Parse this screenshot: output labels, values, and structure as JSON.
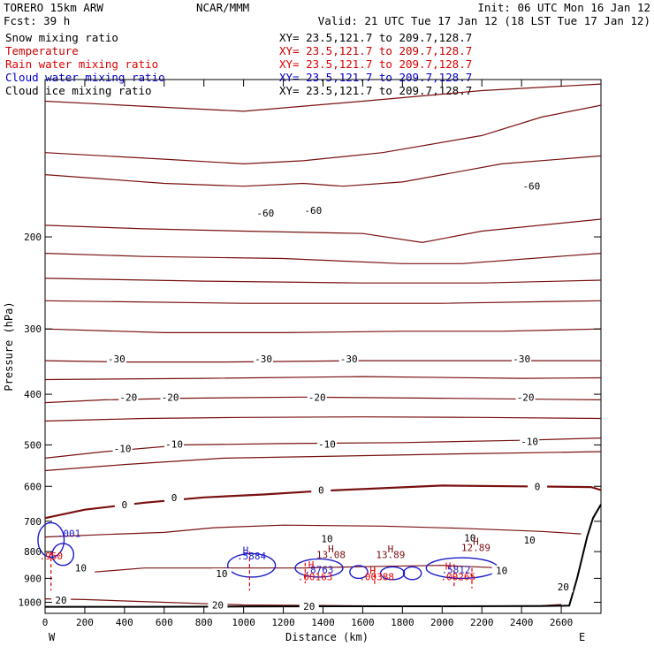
{
  "header": {
    "model": "TORERO  15km ARW",
    "center": "NCAR/MMM",
    "init": "Init: 06 UTC Mon 16 Jan 12",
    "fcst": "Fcst:   39 h",
    "valid": "Valid: 21 UTC Tue 17 Jan 12 (18 LST Tue 17 Jan 12)"
  },
  "fields": [
    {
      "name": "Snow mixing ratio",
      "xy": "XY=  23.5,121.7 to 209.7,128.7",
      "color": "#000000"
    },
    {
      "name": "Temperature",
      "xy": "XY=  23.5,121.7 to 209.7,128.7",
      "color": "#c80000"
    },
    {
      "name": "Rain water mixing ratio",
      "xy": "XY=  23.5,121.7 to 209.7,128.7",
      "color": "#e00000"
    },
    {
      "name": "Cloud water mixing ratio",
      "xy": "XY=  23.5,121.7 to 209.7,128.7",
      "color": "#0000cc"
    },
    {
      "name": "Cloud ice mixing ratio",
      "xy": "XY=  23.5,121.7 to 209.7,128.7",
      "color": "#000000"
    }
  ],
  "colors": {
    "temperature": "#7a1010",
    "rain": "#e00000",
    "cloud_water": "#1a1acc",
    "terrain": "#000000"
  },
  "chart_data": {
    "type": "line",
    "xlabel": "Distance (km)",
    "ylabel": "Pressure (hPa)",
    "x_ticks": [
      0,
      200,
      400,
      600,
      800,
      1000,
      1200,
      1400,
      1600,
      1800,
      2000,
      2200,
      2400,
      2600
    ],
    "y_ticks": [
      200,
      300,
      400,
      500,
      600,
      700,
      800,
      900,
      1000
    ],
    "xlim": [
      0,
      2800
    ],
    "ylim_top": 100,
    "ylim_bottom": 1050,
    "y_scale": "log",
    "left_end": "W",
    "right_end": "E",
    "temperature_contours": [
      {
        "label": "-60",
        "points": [
          [
            0,
            110
          ],
          [
            400,
            112
          ],
          [
            1000,
            115
          ],
          [
            1600,
            110
          ],
          [
            2200,
            105
          ],
          [
            2800,
            102
          ]
        ]
      },
      {
        "label": "-60",
        "points": [
          [
            0,
            138
          ],
          [
            600,
            142
          ],
          [
            1000,
            145
          ],
          [
            1300,
            143
          ],
          [
            1700,
            138
          ],
          [
            2200,
            128
          ],
          [
            2500,
            118
          ],
          [
            2800,
            112
          ]
        ]
      },
      {
        "label": "-60",
        "points": [
          [
            0,
            152
          ],
          [
            600,
            158
          ],
          [
            1000,
            160
          ],
          [
            1300,
            158
          ],
          [
            1500,
            160
          ],
          [
            1800,
            157
          ],
          [
            2300,
            145
          ],
          [
            2800,
            140
          ]
        ]
      },
      {
        "label": "",
        "points": [
          [
            0,
            190
          ],
          [
            500,
            193
          ],
          [
            1000,
            195
          ],
          [
            1600,
            197
          ],
          [
            1900,
            205
          ],
          [
            2200,
            195
          ],
          [
            2800,
            185
          ]
        ]
      },
      {
        "label": "",
        "points": [
          [
            0,
            215
          ],
          [
            500,
            218
          ],
          [
            1200,
            220
          ],
          [
            1800,
            225
          ],
          [
            2100,
            225
          ],
          [
            2800,
            215
          ]
        ]
      },
      {
        "label": "",
        "points": [
          [
            0,
            240
          ],
          [
            800,
            243
          ],
          [
            1600,
            245
          ],
          [
            2200,
            245
          ],
          [
            2800,
            242
          ]
        ]
      },
      {
        "label": "",
        "points": [
          [
            0,
            265
          ],
          [
            1000,
            268
          ],
          [
            2000,
            268
          ],
          [
            2800,
            265
          ]
        ]
      },
      {
        "label": "-30",
        "points": [
          [
            0,
            300
          ],
          [
            600,
            305
          ],
          [
            1200,
            305
          ],
          [
            1800,
            303
          ],
          [
            2300,
            303
          ],
          [
            2800,
            300
          ]
        ]
      },
      {
        "label": "-30",
        "points": [
          [
            0,
            345
          ],
          [
            400,
            347
          ],
          [
            900,
            347
          ],
          [
            1600,
            345
          ],
          [
            2400,
            345
          ],
          [
            2800,
            345
          ]
        ]
      },
      {
        "label": "",
        "points": [
          [
            0,
            375
          ],
          [
            800,
            373
          ],
          [
            1600,
            370
          ],
          [
            2400,
            373
          ],
          [
            2800,
            372
          ]
        ]
      },
      {
        "label": "-20",
        "points": [
          [
            0,
            415
          ],
          [
            300,
            410
          ],
          [
            700,
            407
          ],
          [
            1300,
            405
          ],
          [
            2000,
            407
          ],
          [
            2800,
            410
          ]
        ]
      },
      {
        "label": "",
        "points": [
          [
            0,
            450
          ],
          [
            500,
            445
          ],
          [
            1000,
            443
          ],
          [
            1600,
            442
          ],
          [
            2200,
            443
          ],
          [
            2800,
            445
          ]
        ]
      },
      {
        "label": "-10",
        "points": [
          [
            0,
            530
          ],
          [
            300,
            515
          ],
          [
            700,
            500
          ],
          [
            1200,
            497
          ],
          [
            1800,
            495
          ],
          [
            2400,
            490
          ],
          [
            2800,
            485
          ]
        ]
      },
      {
        "label": "",
        "points": [
          [
            0,
            560
          ],
          [
            400,
            545
          ],
          [
            900,
            530
          ],
          [
            1500,
            525
          ],
          [
            2100,
            520
          ],
          [
            2800,
            515
          ]
        ]
      },
      {
        "label": "0",
        "points": [
          [
            0,
            690
          ],
          [
            200,
            665
          ],
          [
            500,
            645
          ],
          [
            800,
            630
          ],
          [
            1100,
            622
          ],
          [
            1400,
            612
          ],
          [
            1700,
            605
          ],
          [
            2000,
            598
          ],
          [
            2400,
            600
          ],
          [
            2750,
            602
          ],
          [
            2800,
            610
          ]
        ]
      },
      {
        "label": "10",
        "points": [
          [
            0,
            750
          ],
          [
            300,
            742
          ],
          [
            600,
            735
          ],
          [
            850,
            720
          ],
          [
            1200,
            712
          ],
          [
            1700,
            715
          ],
          [
            2100,
            722
          ],
          [
            2500,
            732
          ],
          [
            2700,
            740
          ]
        ]
      },
      {
        "label": "10",
        "points": [
          [
            250,
            875
          ],
          [
            500,
            860
          ],
          [
            900,
            860
          ],
          [
            1300,
            860
          ],
          [
            1600,
            855
          ],
          [
            2000,
            850
          ],
          [
            2300,
            860
          ]
        ]
      },
      {
        "label": "20",
        "points": [
          [
            0,
            985
          ],
          [
            200,
            988
          ],
          [
            600,
            1000
          ],
          [
            1000,
            1012
          ],
          [
            1500,
            1015
          ],
          [
            2000,
            1018
          ],
          [
            2500,
            1015
          ],
          [
            2600,
            1010
          ]
        ]
      }
    ],
    "temperature_labels": [
      {
        "text": "-60",
        "x": 1110,
        "p": 180
      },
      {
        "text": "-60",
        "x": 1350,
        "p": 178
      },
      {
        "text": "-60",
        "x": 2450,
        "p": 160
      },
      {
        "text": "-30",
        "x": 360,
        "p": 342
      },
      {
        "text": "-30",
        "x": 1100,
        "p": 342
      },
      {
        "text": "-30",
        "x": 1530,
        "p": 342
      },
      {
        "text": "-30",
        "x": 2400,
        "p": 342
      },
      {
        "text": "-20",
        "x": 420,
        "p": 405
      },
      {
        "text": "-20",
        "x": 630,
        "p": 405
      },
      {
        "text": "-20",
        "x": 1370,
        "p": 405
      },
      {
        "text": "-20",
        "x": 2420,
        "p": 405
      },
      {
        "text": "-10",
        "x": 390,
        "p": 508
      },
      {
        "text": "-10",
        "x": 650,
        "p": 498
      },
      {
        "text": "-10",
        "x": 1420,
        "p": 498
      },
      {
        "text": "-10",
        "x": 2440,
        "p": 492
      },
      {
        "text": "0",
        "x": 400,
        "p": 650
      },
      {
        "text": "0",
        "x": 650,
        "p": 630
      },
      {
        "text": "0",
        "x": 1390,
        "p": 610
      },
      {
        "text": "0",
        "x": 2480,
        "p": 600
      },
      {
        "text": "10",
        "x": 1420,
        "p": 755
      },
      {
        "text": "10",
        "x": 2140,
        "p": 752
      },
      {
        "text": "10",
        "x": 2440,
        "p": 760
      },
      {
        "text": "10",
        "x": 180,
        "p": 860
      },
      {
        "text": "10",
        "x": 890,
        "p": 882
      },
      {
        "text": "10",
        "x": 2300,
        "p": 870
      },
      {
        "text": "20",
        "x": 80,
        "p": 990
      },
      {
        "text": "20",
        "x": 870,
        "p": 1012
      },
      {
        "text": "20",
        "x": 1330,
        "p": 1017
      },
      {
        "text": "20",
        "x": 2610,
        "p": 935
      }
    ],
    "highs": [
      {
        "text": "H",
        "x": 1440,
        "p": 790,
        "color": "#7a1010"
      },
      {
        "text": "13.08",
        "x": 1440,
        "p": 810,
        "color": "#7a1010"
      },
      {
        "text": "H",
        "x": 1740,
        "p": 790,
        "color": "#7a1010"
      },
      {
        "text": "13.89",
        "x": 1740,
        "p": 810,
        "color": "#7a1010"
      },
      {
        "text": "H",
        "x": 2170,
        "p": 765,
        "color": "#7a1010"
      },
      {
        "text": "12.89",
        "x": 2170,
        "p": 785,
        "color": "#7a1010"
      },
      {
        "text": "H",
        "x": 1340,
        "p": 848,
        "color": "#e00000"
      },
      {
        "text": ".00163",
        "x": 1360,
        "p": 893,
        "color": "#e00000"
      },
      {
        "text": ".00388",
        "x": 1670,
        "p": 893,
        "color": "#e00000"
      },
      {
        "text": ".00265",
        "x": 2080,
        "p": 893,
        "color": "#e00000"
      },
      {
        "text": "H",
        "x": 1650,
        "p": 870,
        "color": "#e00000"
      },
      {
        "text": "H",
        "x": 2030,
        "p": 852,
        "color": "#e00000"
      },
      {
        "text": ".950",
        "x": 30,
        "p": 815,
        "color": "#e00000"
      },
      {
        "text": "H",
        "x": 1010,
        "p": 795,
        "color": "#1a1acc"
      },
      {
        "text": ".5884",
        "x": 1040,
        "p": 815,
        "color": "#1a1acc"
      },
      {
        "text": ".001",
        "x": 120,
        "p": 738,
        "color": "#1a1acc"
      },
      {
        "text": ".8763",
        "x": 1380,
        "p": 866,
        "color": "#1a1acc"
      },
      {
        "text": ".5812",
        "x": 2070,
        "p": 866,
        "color": "#1a1acc"
      }
    ],
    "terrain": [
      [
        0,
        1020
      ],
      [
        500,
        1020
      ],
      [
        1000,
        1019
      ],
      [
        1500,
        1018
      ],
      [
        2000,
        1018
      ],
      [
        2500,
        1017
      ],
      [
        2640,
        1015
      ],
      [
        2680,
        900
      ],
      [
        2730,
        750
      ],
      [
        2760,
        690
      ],
      [
        2800,
        650
      ]
    ]
  }
}
